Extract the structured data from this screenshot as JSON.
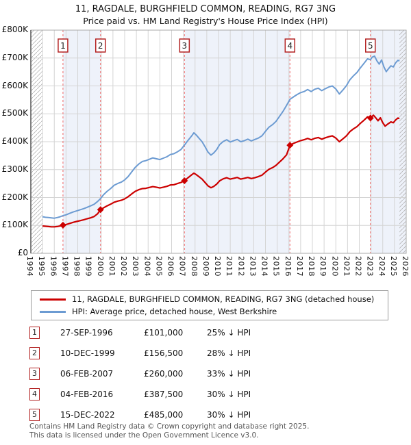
{
  "title": "11, RAGDALE, BURGHFIELD COMMON, READING, RG7 3NG",
  "subtitle": "Price paid vs. HM Land Registry's House Price Index (HPI)",
  "chart_data": {
    "type": "line",
    "x_min": 1994,
    "x_max": 2026,
    "ylim_k": 800,
    "data_start": 1995.0,
    "data_end": 2025.42,
    "grid": true,
    "band_color": "#eef2fa",
    "grid_color": "#d4d4d4",
    "dash_color": "#f08080",
    "hatch_color": "#b8b8b8",
    "border_color": "#aaaaaa",
    "spine_color": "#555555",
    "y_ticks": [
      "£0",
      "£100K",
      "£200K",
      "£300K",
      "£400K",
      "£500K",
      "£600K",
      "£700K",
      "£800K"
    ],
    "x_ticks": [
      "1994",
      "1995",
      "1996",
      "1997",
      "1998",
      "1999",
      "2000",
      "2001",
      "2002",
      "2003",
      "2004",
      "2005",
      "2006",
      "2007",
      "2008",
      "2009",
      "2010",
      "2011",
      "2012",
      "2013",
      "2014",
      "2015",
      "2016",
      "2017",
      "2018",
      "2019",
      "2020",
      "2021",
      "2022",
      "2023",
      "2024",
      "2025",
      "2026"
    ],
    "series": [
      {
        "name": "HPI: Average price, detached house, West Berkshire",
        "color": "#6c9bd2",
        "width": 2,
        "points": [
          [
            1995.0,
            131
          ],
          [
            1995.25,
            129
          ],
          [
            1995.5,
            128
          ],
          [
            1995.75,
            127
          ],
          [
            1996.0,
            126
          ],
          [
            1996.25,
            128
          ],
          [
            1996.5,
            131
          ],
          [
            1996.74,
            135
          ],
          [
            1997.0,
            138
          ],
          [
            1997.3,
            143
          ],
          [
            1997.6,
            148
          ],
          [
            1997.9,
            152
          ],
          [
            1998.2,
            156
          ],
          [
            1998.5,
            160
          ],
          [
            1998.8,
            165
          ],
          [
            1999.1,
            170
          ],
          [
            1999.4,
            176
          ],
          [
            1999.7,
            186
          ],
          [
            1999.94,
            196
          ],
          [
            2000.2,
            210
          ],
          [
            2000.5,
            222
          ],
          [
            2000.8,
            232
          ],
          [
            2001.1,
            244
          ],
          [
            2001.4,
            250
          ],
          [
            2001.7,
            255
          ],
          [
            2002.0,
            263
          ],
          [
            2002.3,
            275
          ],
          [
            2002.6,
            292
          ],
          [
            2002.9,
            308
          ],
          [
            2003.2,
            320
          ],
          [
            2003.5,
            329
          ],
          [
            2003.8,
            332
          ],
          [
            2004.1,
            337
          ],
          [
            2004.4,
            342
          ],
          [
            2004.7,
            339
          ],
          [
            2005.0,
            336
          ],
          [
            2005.3,
            341
          ],
          [
            2005.6,
            346
          ],
          [
            2005.9,
            354
          ],
          [
            2006.2,
            357
          ],
          [
            2006.5,
            364
          ],
          [
            2006.8,
            372
          ],
          [
            2007.1,
            388
          ],
          [
            2007.4,
            405
          ],
          [
            2007.7,
            420
          ],
          [
            2007.9,
            432
          ],
          [
            2008.1,
            424
          ],
          [
            2008.35,
            412
          ],
          [
            2008.6,
            400
          ],
          [
            2008.85,
            382
          ],
          [
            2009.1,
            363
          ],
          [
            2009.35,
            352
          ],
          [
            2009.6,
            360
          ],
          [
            2009.85,
            372
          ],
          [
            2010.1,
            390
          ],
          [
            2010.4,
            401
          ],
          [
            2010.7,
            407
          ],
          [
            2011.0,
            399
          ],
          [
            2011.3,
            404
          ],
          [
            2011.6,
            408
          ],
          [
            2011.9,
            400
          ],
          [
            2012.2,
            404
          ],
          [
            2012.5,
            409
          ],
          [
            2012.8,
            403
          ],
          [
            2013.1,
            408
          ],
          [
            2013.4,
            413
          ],
          [
            2013.7,
            421
          ],
          [
            2014.0,
            437
          ],
          [
            2014.3,
            452
          ],
          [
            2014.6,
            461
          ],
          [
            2014.9,
            473
          ],
          [
            2015.2,
            491
          ],
          [
            2015.5,
            509
          ],
          [
            2015.8,
            530
          ],
          [
            2016.09,
            552
          ],
          [
            2016.4,
            561
          ],
          [
            2016.7,
            569
          ],
          [
            2017.0,
            576
          ],
          [
            2017.3,
            580
          ],
          [
            2017.6,
            587
          ],
          [
            2017.9,
            580
          ],
          [
            2018.2,
            588
          ],
          [
            2018.5,
            592
          ],
          [
            2018.8,
            583
          ],
          [
            2019.1,
            590
          ],
          [
            2019.4,
            596
          ],
          [
            2019.7,
            600
          ],
          [
            2020.0,
            589
          ],
          [
            2020.3,
            571
          ],
          [
            2020.6,
            585
          ],
          [
            2020.9,
            601
          ],
          [
            2021.2,
            622
          ],
          [
            2021.5,
            636
          ],
          [
            2021.8,
            648
          ],
          [
            2022.1,
            665
          ],
          [
            2022.4,
            681
          ],
          [
            2022.7,
            697
          ],
          [
            2022.95,
            694
          ],
          [
            2023.1,
            703
          ],
          [
            2023.3,
            707
          ],
          [
            2023.5,
            690
          ],
          [
            2023.7,
            678
          ],
          [
            2023.9,
            693
          ],
          [
            2024.1,
            668
          ],
          [
            2024.3,
            651
          ],
          [
            2024.5,
            662
          ],
          [
            2024.7,
            672
          ],
          [
            2024.9,
            668
          ],
          [
            2025.1,
            683
          ],
          [
            2025.3,
            692
          ],
          [
            2025.42,
            689
          ]
        ]
      },
      {
        "name": "11, RAGDALE, BURGHFIELD COMMON, READING, RG7 3NG (detached house)",
        "color": "#cc0000",
        "width": 2.2,
        "points": [
          [
            1995.0,
            98
          ],
          [
            1995.25,
            97
          ],
          [
            1995.5,
            96
          ],
          [
            1995.75,
            95
          ],
          [
            1996.0,
            95
          ],
          [
            1996.25,
            96
          ],
          [
            1996.5,
            98
          ],
          [
            1996.74,
            101
          ],
          [
            1997.0,
            103
          ],
          [
            1997.3,
            107
          ],
          [
            1997.6,
            111
          ],
          [
            1997.9,
            114
          ],
          [
            1998.2,
            117
          ],
          [
            1998.5,
            120
          ],
          [
            1998.8,
            124
          ],
          [
            1999.1,
            127
          ],
          [
            1999.4,
            132
          ],
          [
            1999.7,
            142
          ],
          [
            1999.94,
            156.5
          ],
          [
            2000.2,
            163
          ],
          [
            2000.5,
            170
          ],
          [
            2000.8,
            176
          ],
          [
            2001.1,
            183
          ],
          [
            2001.4,
            187
          ],
          [
            2001.7,
            190
          ],
          [
            2002.0,
            195
          ],
          [
            2002.3,
            203
          ],
          [
            2002.6,
            213
          ],
          [
            2002.9,
            222
          ],
          [
            2003.2,
            228
          ],
          [
            2003.5,
            232
          ],
          [
            2003.8,
            233
          ],
          [
            2004.1,
            236
          ],
          [
            2004.4,
            239
          ],
          [
            2004.7,
            237
          ],
          [
            2005.0,
            234
          ],
          [
            2005.3,
            237
          ],
          [
            2005.6,
            240
          ],
          [
            2005.9,
            245
          ],
          [
            2006.2,
            246
          ],
          [
            2006.5,
            250
          ],
          [
            2006.8,
            254
          ],
          [
            2007.1,
            260
          ],
          [
            2007.4,
            271
          ],
          [
            2007.7,
            281
          ],
          [
            2007.9,
            287
          ],
          [
            2008.1,
            282
          ],
          [
            2008.35,
            274
          ],
          [
            2008.6,
            266
          ],
          [
            2008.85,
            254
          ],
          [
            2009.1,
            242
          ],
          [
            2009.35,
            235
          ],
          [
            2009.6,
            240
          ],
          [
            2009.85,
            248
          ],
          [
            2010.1,
            260
          ],
          [
            2010.4,
            267
          ],
          [
            2010.7,
            271
          ],
          [
            2011.0,
            266
          ],
          [
            2011.3,
            269
          ],
          [
            2011.6,
            272
          ],
          [
            2011.9,
            266
          ],
          [
            2012.2,
            269
          ],
          [
            2012.5,
            272
          ],
          [
            2012.8,
            268
          ],
          [
            2013.1,
            271
          ],
          [
            2013.4,
            275
          ],
          [
            2013.7,
            280
          ],
          [
            2014.0,
            291
          ],
          [
            2014.3,
            301
          ],
          [
            2014.6,
            307
          ],
          [
            2014.9,
            315
          ],
          [
            2015.2,
            327
          ],
          [
            2015.5,
            339
          ],
          [
            2015.8,
            353
          ],
          [
            2016.09,
            387.5
          ],
          [
            2016.4,
            394
          ],
          [
            2016.7,
            399
          ],
          [
            2017.0,
            404
          ],
          [
            2017.3,
            407
          ],
          [
            2017.6,
            412
          ],
          [
            2017.9,
            407
          ],
          [
            2018.2,
            412
          ],
          [
            2018.5,
            415
          ],
          [
            2018.8,
            409
          ],
          [
            2019.1,
            414
          ],
          [
            2019.4,
            418
          ],
          [
            2019.7,
            421
          ],
          [
            2020.0,
            413
          ],
          [
            2020.3,
            400
          ],
          [
            2020.6,
            410
          ],
          [
            2020.9,
            421
          ],
          [
            2021.2,
            436
          ],
          [
            2021.5,
            446
          ],
          [
            2021.8,
            454
          ],
          [
            2022.1,
            466
          ],
          [
            2022.4,
            477
          ],
          [
            2022.7,
            489
          ],
          [
            2022.95,
            485
          ],
          [
            2023.2,
            495
          ],
          [
            2023.4,
            486
          ],
          [
            2023.6,
            475
          ],
          [
            2023.8,
            486
          ],
          [
            2024.0,
            468
          ],
          [
            2024.2,
            456
          ],
          [
            2024.45,
            464
          ],
          [
            2024.7,
            471
          ],
          [
            2024.9,
            468
          ],
          [
            2025.1,
            478
          ],
          [
            2025.3,
            485
          ],
          [
            2025.42,
            483
          ]
        ]
      }
    ],
    "sales": [
      {
        "n": "1",
        "year": 1996.74,
        "price_k": 101,
        "date": "27-SEP-1996",
        "price": "£101,000",
        "pct": "25% ↓ HPI"
      },
      {
        "n": "2",
        "year": 1999.94,
        "price_k": 156.5,
        "date": "10-DEC-1999",
        "price": "£156,500",
        "pct": "28% ↓ HPI"
      },
      {
        "n": "3",
        "year": 2007.1,
        "price_k": 260,
        "date": "06-FEB-2007",
        "price": "£260,000",
        "pct": "33% ↓ HPI"
      },
      {
        "n": "4",
        "year": 2016.09,
        "price_k": 387.5,
        "date": "04-FEB-2016",
        "price": "£387,500",
        "pct": "30% ↓ HPI"
      },
      {
        "n": "5",
        "year": 2022.95,
        "price_k": 485,
        "date": "15-DEC-2022",
        "price": "£485,000",
        "pct": "30% ↓ HPI"
      }
    ]
  },
  "legend": {
    "items": [
      {
        "label": "11, RAGDALE, BURGHFIELD COMMON, READING, RG7 3NG (detached house)",
        "color": "#cc0000"
      },
      {
        "label": "HPI: Average price, detached house, West Berkshire",
        "color": "#6c9bd2"
      }
    ]
  },
  "table": {
    "rows": [
      {
        "num": "1",
        "date": "27-SEP-1996",
        "price": "£101,000",
        "pct": "25% ↓ HPI"
      },
      {
        "num": "2",
        "date": "10-DEC-1999",
        "price": "£156,500",
        "pct": "28% ↓ HPI"
      },
      {
        "num": "3",
        "date": "06-FEB-2007",
        "price": "£260,000",
        "pct": "33% ↓ HPI"
      },
      {
        "num": "4",
        "date": "04-FEB-2016",
        "price": "£387,500",
        "pct": "30% ↓ HPI"
      },
      {
        "num": "5",
        "date": "15-DEC-2022",
        "price": "£485,000",
        "pct": "30% ↓ HPI"
      }
    ]
  },
  "footer": {
    "line1": "Contains HM Land Registry data © Crown copyright and database right 2025.",
    "line2": "This data is licensed under the Open Government Licence v3.0."
  }
}
